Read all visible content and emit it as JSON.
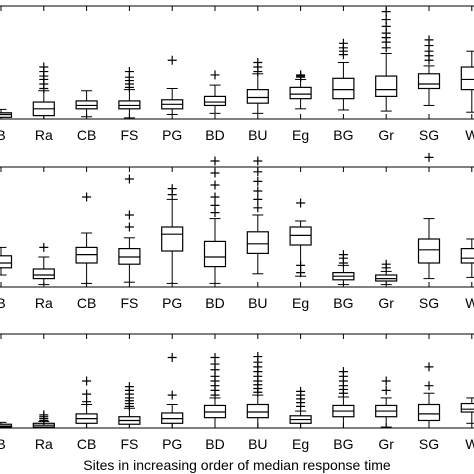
{
  "chart_data": [
    {
      "type": "box",
      "categories": [
        "B",
        "Ra",
        "CB",
        "FS",
        "PG",
        "BD",
        "BU",
        "Eg",
        "BG",
        "Gr",
        "SG",
        "W"
      ],
      "ylim": [
        0,
        1
      ],
      "grid": false,
      "boxes": [
        {
          "whislo": 0.0,
          "q1": 0.015,
          "med": 0.04,
          "q3": 0.055,
          "whishi": 0.085,
          "fliers": []
        },
        {
          "whislo": 0.0,
          "q1": 0.03,
          "med": 0.09,
          "q3": 0.15,
          "whishi": 0.25,
          "fliers": [
            0.27,
            0.31,
            0.35,
            0.38,
            0.42,
            0.46
          ]
        },
        {
          "whislo": 0.02,
          "q1": 0.09,
          "med": 0.12,
          "q3": 0.16,
          "whishi": 0.25,
          "fliers": []
        },
        {
          "whislo": 0.01,
          "q1": 0.09,
          "med": 0.12,
          "q3": 0.16,
          "whishi": 0.26,
          "fliers": [
            0.28,
            0.31,
            0.34,
            0.37,
            0.42
          ]
        },
        {
          "whislo": 0.04,
          "q1": 0.09,
          "med": 0.13,
          "q3": 0.17,
          "whishi": 0.27,
          "fliers": [
            0.52
          ]
        },
        {
          "whislo": 0.05,
          "q1": 0.12,
          "med": 0.15,
          "q3": 0.2,
          "whishi": 0.3,
          "fliers": [
            0.39
          ]
        },
        {
          "whislo": 0.05,
          "q1": 0.14,
          "med": 0.19,
          "q3": 0.26,
          "whishi": 0.4,
          "fliers": [
            0.42,
            0.46,
            0.5
          ]
        },
        {
          "whislo": 0.09,
          "q1": 0.18,
          "med": 0.22,
          "q3": 0.28,
          "whishi": 0.35,
          "fliers": [
            0.37,
            0.38,
            0.39
          ]
        },
        {
          "whislo": 0.08,
          "q1": 0.18,
          "med": 0.26,
          "q3": 0.36,
          "whishi": 0.5,
          "fliers": [
            0.57,
            0.6,
            0.63,
            0.67
          ]
        },
        {
          "whislo": 0.07,
          "q1": 0.2,
          "med": 0.26,
          "q3": 0.38,
          "whishi": 0.58,
          "fliers": [
            0.63,
            0.68,
            0.72,
            0.76,
            0.82,
            0.88,
            0.95
          ]
        },
        {
          "whislo": 0.12,
          "q1": 0.27,
          "med": 0.31,
          "q3": 0.4,
          "whishi": 0.47,
          "fliers": [
            0.52,
            0.56,
            0.6,
            0.65,
            0.7
          ]
        },
        {
          "whislo": 0.06,
          "q1": 0.26,
          "med": 0.35,
          "q3": 0.46,
          "whishi": 0.6,
          "fliers": []
        }
      ]
    },
    {
      "type": "box",
      "categories": [
        "B",
        "Ra",
        "CB",
        "FS",
        "PG",
        "BD",
        "BU",
        "Eg",
        "BG",
        "Gr",
        "SG",
        "W"
      ],
      "ylim": [
        0,
        1
      ],
      "grid": false,
      "boxes": [
        {
          "whislo": 0.1,
          "q1": 0.16,
          "med": 0.2,
          "q3": 0.26,
          "whishi": 0.33,
          "fliers": []
        },
        {
          "whislo": 0.02,
          "q1": 0.07,
          "med": 0.1,
          "q3": 0.15,
          "whishi": 0.25,
          "fliers": [
            0.33
          ]
        },
        {
          "whislo": 0.03,
          "q1": 0.2,
          "med": 0.27,
          "q3": 0.33,
          "whishi": 0.45,
          "fliers": [
            0.75
          ]
        },
        {
          "whislo": 0.04,
          "q1": 0.19,
          "med": 0.25,
          "q3": 0.32,
          "whishi": 0.41,
          "fliers": [
            0.5,
            0.6,
            0.9
          ]
        },
        {
          "whislo": 0.03,
          "q1": 0.3,
          "med": 0.44,
          "q3": 0.5,
          "whishi": 0.73,
          "fliers": [
            0.77,
            0.82
          ]
        },
        {
          "whislo": 0.03,
          "q1": 0.17,
          "med": 0.25,
          "q3": 0.38,
          "whishi": 0.57,
          "fliers": [
            0.62,
            0.68,
            0.75,
            0.85,
            0.95,
            1.05,
            1.15
          ]
        },
        {
          "whislo": 0.11,
          "q1": 0.28,
          "med": 0.36,
          "q3": 0.46,
          "whishi": 0.6,
          "fliers": [
            0.66,
            0.73,
            0.8,
            0.88,
            0.96,
            1.05
          ]
        },
        {
          "whislo": 0.09,
          "q1": 0.35,
          "med": 0.43,
          "q3": 0.5,
          "whishi": 0.55,
          "fliers": [
            0.12,
            0.18,
            0.7
          ]
        },
        {
          "whislo": 0.02,
          "q1": 0.06,
          "med": 0.09,
          "q3": 0.12,
          "whishi": 0.18,
          "fliers": [
            0.2,
            0.24,
            0.27
          ]
        },
        {
          "whislo": 0.02,
          "q1": 0.05,
          "med": 0.07,
          "q3": 0.1,
          "whishi": 0.13,
          "fliers": [
            0.16,
            0.19
          ]
        },
        {
          "whislo": 0.07,
          "q1": 0.2,
          "med": 0.31,
          "q3": 0.4,
          "whishi": 0.57,
          "fliers": [
            1.08
          ]
        },
        {
          "whislo": 0.08,
          "q1": 0.2,
          "med": 0.24,
          "q3": 0.32,
          "whishi": 0.4,
          "fliers": []
        }
      ]
    },
    {
      "type": "box",
      "categories": [
        "B",
        "Ra",
        "CB",
        "FS",
        "PG",
        "BD",
        "BU",
        "Eg",
        "BG",
        "Gr",
        "SG",
        "W"
      ],
      "ylim": [
        0,
        1
      ],
      "grid": false,
      "xlabel": "Sites in increasing order of median response time",
      "boxes": [
        {
          "whislo": 0.0,
          "q1": 0.01,
          "med": 0.02,
          "q3": 0.04,
          "whishi": 0.06,
          "fliers": []
        },
        {
          "whislo": 0.0,
          "q1": 0.01,
          "med": 0.03,
          "q3": 0.05,
          "whishi": 0.07,
          "fliers": [
            0.08,
            0.1,
            0.12,
            0.14
          ]
        },
        {
          "whislo": 0.0,
          "q1": 0.05,
          "med": 0.1,
          "q3": 0.15,
          "whishi": 0.25,
          "fliers": [
            0.28,
            0.36,
            0.5
          ]
        },
        {
          "whislo": 0.0,
          "q1": 0.04,
          "med": 0.08,
          "q3": 0.12,
          "whishi": 0.21,
          "fliers": [
            0.23,
            0.26,
            0.29,
            0.32,
            0.36,
            0.4,
            0.44
          ]
        },
        {
          "whislo": 0.0,
          "q1": 0.05,
          "med": 0.1,
          "q3": 0.16,
          "whishi": 0.25,
          "fliers": [
            0.35,
            0.75
          ]
        },
        {
          "whislo": 0.0,
          "q1": 0.11,
          "med": 0.17,
          "q3": 0.24,
          "whishi": 0.32,
          "fliers": [
            0.35,
            0.4,
            0.45,
            0.5,
            0.55,
            0.62,
            0.68,
            0.75
          ]
        },
        {
          "whislo": 0.0,
          "q1": 0.11,
          "med": 0.17,
          "q3": 0.25,
          "whishi": 0.35,
          "fliers": [
            0.38,
            0.42,
            0.46,
            0.5,
            0.55,
            0.6,
            0.65,
            0.7,
            0.76
          ]
        },
        {
          "whislo": 0.0,
          "q1": 0.05,
          "med": 0.09,
          "q3": 0.13,
          "whishi": 0.18,
          "fliers": [
            0.23,
            0.27,
            0.31,
            0.35,
            0.39
          ]
        },
        {
          "whislo": 0.0,
          "q1": 0.12,
          "med": 0.18,
          "q3": 0.24,
          "whishi": 0.33,
          "fliers": [
            0.37,
            0.41,
            0.45,
            0.5,
            0.55,
            0.6
          ]
        },
        {
          "whislo": 0.01,
          "q1": 0.12,
          "med": 0.18,
          "q3": 0.24,
          "whishi": 0.32,
          "fliers": [
            0.4,
            0.5
          ]
        },
        {
          "whislo": 0.0,
          "q1": 0.08,
          "med": 0.15,
          "q3": 0.25,
          "whishi": 0.37,
          "fliers": [
            0.45,
            0.65
          ]
        },
        {
          "whislo": 0.05,
          "q1": 0.17,
          "med": 0.2,
          "q3": 0.26,
          "whishi": 0.32,
          "fliers": []
        }
      ]
    }
  ]
}
